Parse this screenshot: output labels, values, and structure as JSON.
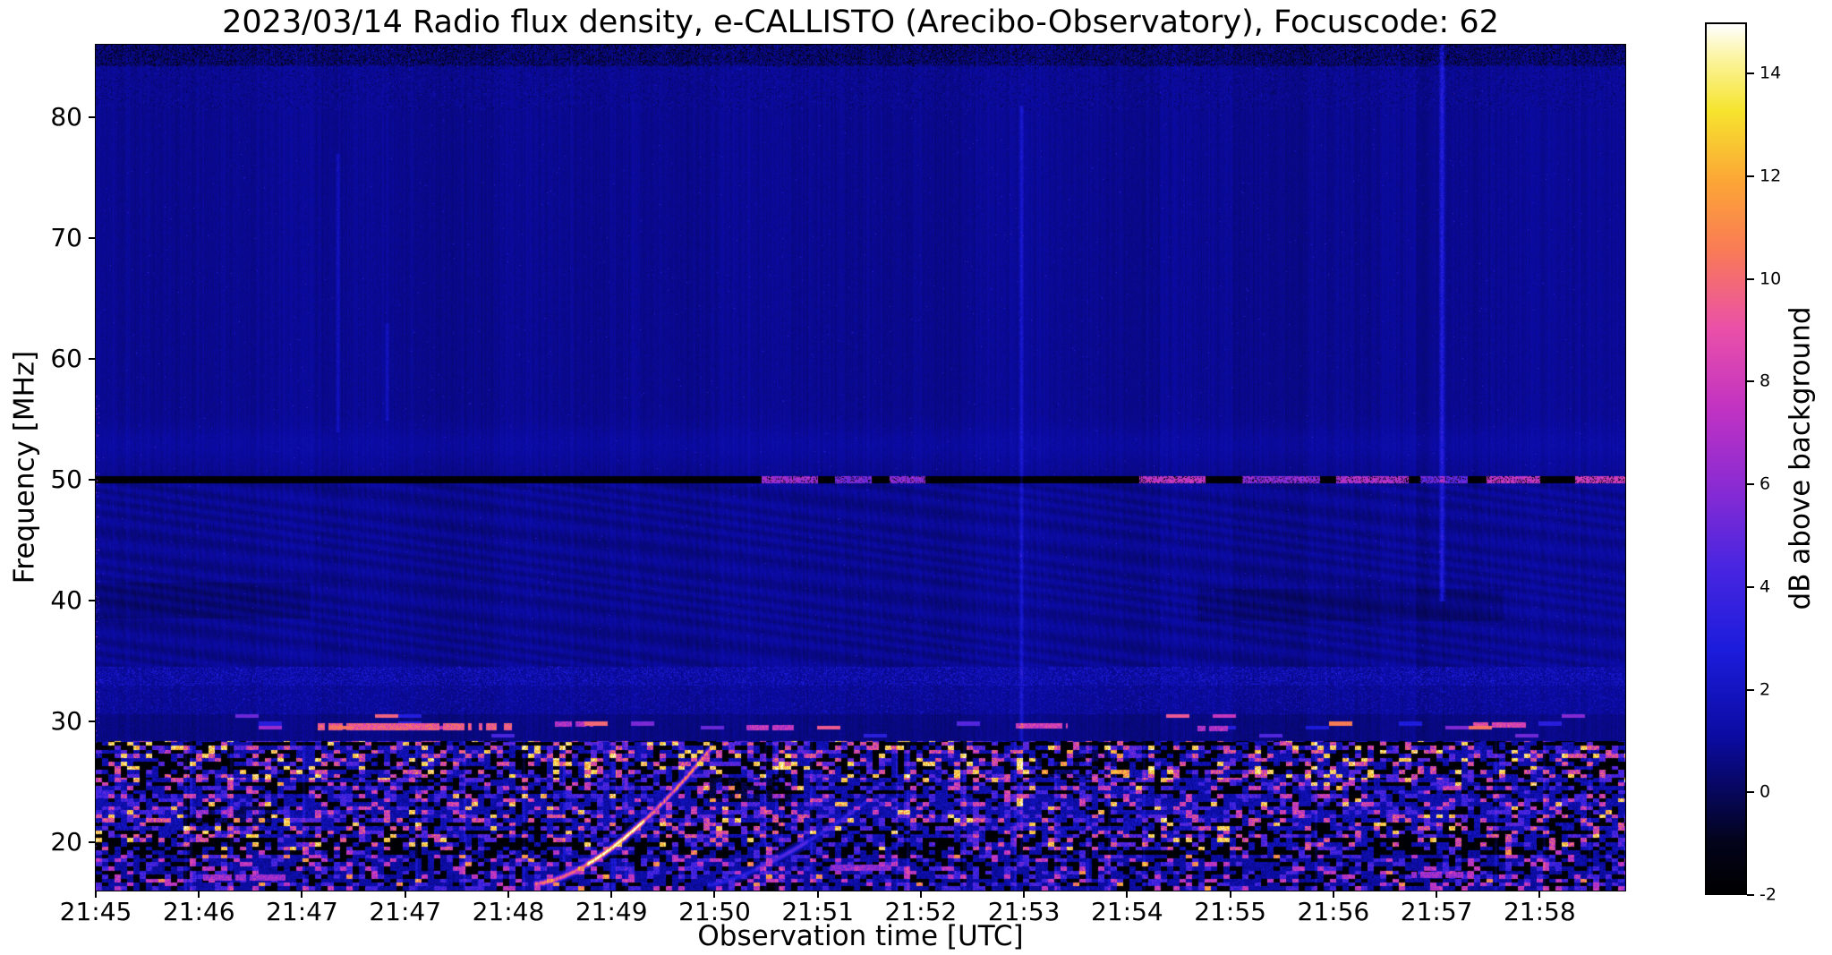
{
  "chart_data": {
    "type": "heatmap",
    "title": "2023/03/14  Radio flux density, e-CALLISTO (Arecibo-Observatory), Focuscode: 62",
    "xlabel": "Observation time [UTC]",
    "ylabel": "Frequency [MHz]",
    "x_ticks": [
      "21:45",
      "21:46",
      "21:47",
      "21:47",
      "21:48",
      "21:49",
      "21:50",
      "21:51",
      "21:52",
      "21:53",
      "21:54",
      "21:55",
      "21:56",
      "21:57",
      "21:58"
    ],
    "y_ticks": [
      80,
      70,
      60,
      50,
      40,
      30,
      20
    ],
    "freq_range": [
      16,
      86
    ],
    "grid": false,
    "colorbar": {
      "label": "dB above background",
      "ticks": [
        14,
        12,
        10,
        8,
        6,
        4,
        2,
        0,
        -2
      ],
      "vmin": -2,
      "vmax": 15,
      "stops": [
        {
          "t": 0.0,
          "c": "#000000"
        },
        {
          "t": 0.06,
          "c": "#03031c"
        },
        {
          "t": 0.12,
          "c": "#070760"
        },
        {
          "t": 0.18,
          "c": "#0b0ba2"
        },
        {
          "t": 0.28,
          "c": "#1c1cdc"
        },
        {
          "t": 0.38,
          "c": "#4b26e0"
        },
        {
          "t": 0.47,
          "c": "#8c2bd2"
        },
        {
          "t": 0.56,
          "c": "#c233c2"
        },
        {
          "t": 0.65,
          "c": "#ea50a8"
        },
        {
          "t": 0.74,
          "c": "#f97b55"
        },
        {
          "t": 0.82,
          "c": "#fca636"
        },
        {
          "t": 0.9,
          "c": "#f6e42e"
        },
        {
          "t": 0.96,
          "c": "#fbf49e"
        },
        {
          "t": 1.0,
          "c": "#ffffff"
        }
      ]
    },
    "features": {
      "band_50mhz": {
        "freq": 50.0,
        "half_width_mhz": 0.33,
        "value_db": -2,
        "bright_segments": [
          {
            "x0": 0.435,
            "x1": 0.472,
            "v": 6.5
          },
          {
            "x0": 0.483,
            "x1": 0.507,
            "v": 5.5
          },
          {
            "x0": 0.519,
            "x1": 0.542,
            "v": 6.0
          },
          {
            "x0": 0.682,
            "x1": 0.725,
            "v": 7.5
          },
          {
            "x0": 0.749,
            "x1": 0.8,
            "v": 6.0
          },
          {
            "x0": 0.811,
            "x1": 0.858,
            "v": 7.0
          },
          {
            "x0": 0.866,
            "x1": 0.897,
            "v": 5.0
          },
          {
            "x0": 0.909,
            "x1": 0.944,
            "v": 7.5
          },
          {
            "x0": 0.967,
            "x1": 1.001,
            "v": 8.0
          }
        ]
      },
      "drifting_bursts": [
        {
          "x0": 0.287,
          "f0": 16.6,
          "x1": 0.402,
          "f1": 27.8,
          "v": 11,
          "curve": 1.6
        },
        {
          "x0": 0.4,
          "f0": 16.5,
          "x1": 0.505,
          "f1": 23.5,
          "v": 3.5,
          "curve": 1.4
        }
      ],
      "rfi_lines": [
        {
          "f": 29.55,
          "x0": 0.145,
          "x1": 0.272,
          "v": 9.5,
          "hw": 0.28
        },
        {
          "f": 29.8,
          "x0": 0.3,
          "x1": 0.325,
          "v": 7.0,
          "hw": 0.22
        },
        {
          "f": 29.5,
          "x0": 0.425,
          "x1": 0.458,
          "v": 7.5,
          "hw": 0.22
        },
        {
          "f": 29.6,
          "x0": 0.6,
          "x1": 0.635,
          "v": 8.0,
          "hw": 0.22
        },
        {
          "f": 29.4,
          "x0": 0.72,
          "x1": 0.74,
          "v": 7.0,
          "hw": 0.2
        },
        {
          "f": 29.7,
          "x0": 0.9,
          "x1": 0.935,
          "v": 8.5,
          "hw": 0.22
        },
        {
          "f": 17.1,
          "x0": 0.07,
          "x1": 0.125,
          "v": 6.5,
          "hw": 0.25
        },
        {
          "f": 17.9,
          "x0": 0.48,
          "x1": 0.52,
          "v": 6.0,
          "hw": 0.25
        },
        {
          "f": 17.3,
          "x0": 0.86,
          "x1": 0.9,
          "v": 6.5,
          "hw": 0.25
        }
      ],
      "vertical_streaks": [
        {
          "x": 0.158,
          "f0": 54,
          "f1": 77,
          "v": 1.6,
          "w": 2
        },
        {
          "x": 0.605,
          "f0": 18,
          "f1": 81,
          "v": 2.2,
          "w": 2
        },
        {
          "x": 0.88,
          "f0": 40,
          "f1": 86,
          "v": 3.2,
          "w": 3
        },
        {
          "x": 0.19,
          "f0": 55,
          "f1": 63,
          "v": 1.4,
          "w": 2
        }
      ],
      "dark_patches": [
        {
          "x0": 0.0,
          "x1": 0.14,
          "f0": 38.5,
          "f1": 41.5,
          "depth": 0.5
        },
        {
          "x0": 0.72,
          "x1": 0.92,
          "f0": 38.3,
          "f1": 41.0,
          "depth": 0.45
        },
        {
          "x0": 0.4,
          "x1": 0.455,
          "f0": 23.3,
          "f1": 25.3,
          "depth": 2.2
        },
        {
          "x0": 0.615,
          "x1": 0.675,
          "f0": 25.4,
          "f1": 27.6,
          "depth": 1.8
        },
        {
          "x0": 0.06,
          "x1": 0.115,
          "f0": 21.5,
          "f1": 23.0,
          "depth": 1.8
        },
        {
          "x0": 0.0,
          "x1": 1.0,
          "f0": 84.3,
          "f1": 86.0,
          "depth": 0.4
        }
      ],
      "noise_bands": [
        {
          "f0": 84.2,
          "f1": 86.01,
          "style": "mottle",
          "p_black": 0.3,
          "p_bright": 0.012
        },
        {
          "f0": 80.6,
          "f1": 84.2,
          "style": "speckle",
          "p": 0.2,
          "lo": -0.4,
          "hi": 1.9
        },
        {
          "f0": 50.33,
          "f1": 80.6,
          "style": "calm"
        },
        {
          "f0": 34.5,
          "f1": 49.67,
          "style": "ripples"
        },
        {
          "f0": 33.0,
          "f1": 34.5,
          "style": "speckle",
          "p": 0.45,
          "lo": 0.9,
          "hi": 3.2
        },
        {
          "f0": 30.6,
          "f1": 33.0,
          "style": "speckle",
          "p": 0.26,
          "lo": 0.5,
          "hi": 2.6
        },
        {
          "f0": 28.4,
          "f1": 30.6,
          "style": "dashes",
          "p": 0.12,
          "lo": 2.5,
          "hi": 10.5
        },
        {
          "f0": 25.2,
          "f1": 28.4,
          "style": "dense",
          "black": 0.3,
          "mix": [
            [
              0.5,
              0.5,
              2.0
            ],
            [
              0.72,
              3,
              3
            ],
            [
              0.9,
              6,
              5
            ],
            [
              1.01,
              11,
              4
            ]
          ]
        },
        {
          "f0": 22.3,
          "f1": 25.2,
          "style": "dense",
          "black": 0.16,
          "mix": [
            [
              0.6,
              0.5,
              1.8
            ],
            [
              0.85,
              2.5,
              3
            ],
            [
              0.97,
              6,
              4
            ],
            [
              1.01,
              10,
              5
            ]
          ]
        },
        {
          "f0": 19.3,
          "f1": 22.3,
          "style": "dense",
          "black": 0.2,
          "mix": [
            [
              0.55,
              0.6,
              2.0
            ],
            [
              0.8,
              3,
              3
            ],
            [
              0.95,
              6,
              5
            ],
            [
              1.01,
              11,
              4
            ]
          ]
        },
        {
          "f0": 15.99,
          "f1": 19.3,
          "style": "dense",
          "black": 0.26,
          "mix": [
            [
              0.63,
              0.4,
              1.6
            ],
            [
              0.86,
              2.5,
              3
            ],
            [
              0.975,
              6,
              3
            ],
            [
              1.01,
              9,
              4
            ]
          ]
        }
      ]
    }
  }
}
